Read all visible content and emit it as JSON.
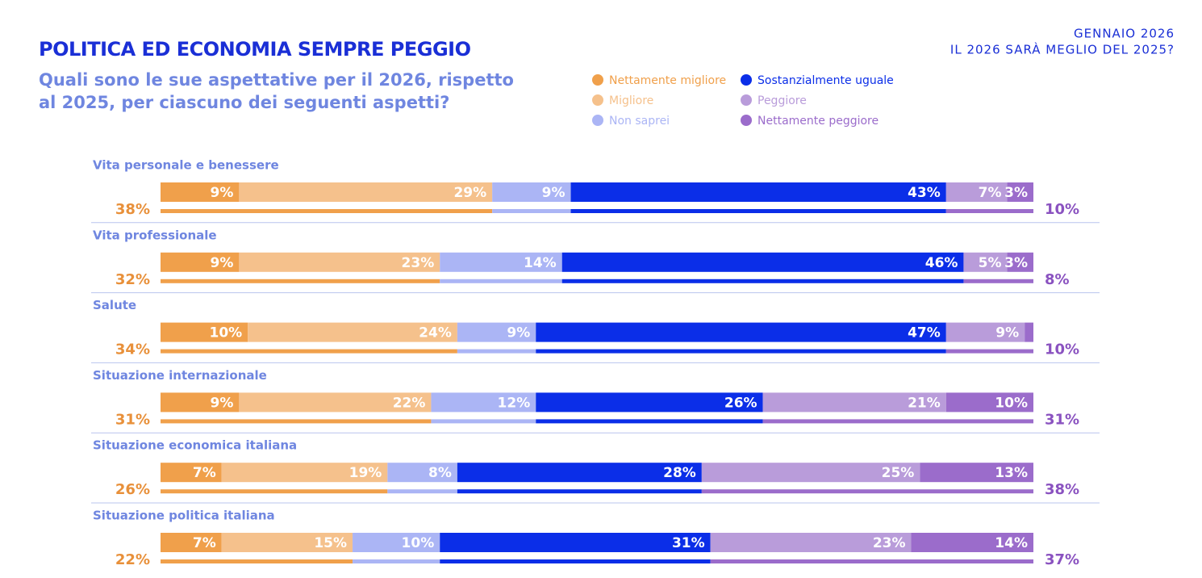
{
  "chart_data": {
    "type": "stacked-bar-horizontal",
    "title": "POLITICA ED ECONOMIA SEMPRE PEGGIO",
    "subtitle": "Quali sono le sue aspettative per il 2026, rispetto al 2025, per ciascuno dei seguenti aspetti?",
    "date": "GENNAIO 2026",
    "question": "IL 2026 SARÀ MEGLIO DEL 2025?",
    "categories": [
      "Vita personale e benessere",
      "Vita professionale",
      "Salute",
      "Situazione internazionale",
      "Situazione economica italiana",
      "Situazione politica italiana"
    ],
    "xlim": [
      0,
      100
    ],
    "series": [
      {
        "name": "Nettamente migliore",
        "color": "#f0a04b",
        "values": [
          9,
          9,
          10,
          9,
          7,
          7
        ],
        "value_labels": [
          "9%",
          "9%",
          "10%",
          "9%",
          "7%",
          "7%"
        ]
      },
      {
        "name": "Migliore",
        "color": "#f5c18c",
        "values": [
          29,
          23,
          24,
          22,
          19,
          15
        ],
        "value_labels": [
          "29%",
          "23%",
          "24%",
          "22%",
          "19%",
          "15%"
        ]
      },
      {
        "name": "Non saprei",
        "color": "#abb5f5",
        "values": [
          9,
          14,
          9,
          12,
          8,
          10
        ],
        "value_labels": [
          "9%",
          "14%",
          "9%",
          "12%",
          "8%",
          "10%"
        ]
      },
      {
        "name": "Sostanzialmente uguale",
        "color": "#0b2ee8",
        "values": [
          43,
          46,
          47,
          26,
          28,
          31
        ],
        "value_labels": [
          "43%",
          "46%",
          "47%",
          "26%",
          "28%",
          "31%"
        ]
      },
      {
        "name": "Peggiore",
        "color": "#b99cda",
        "values": [
          7,
          5,
          9,
          21,
          25,
          23
        ],
        "value_labels": [
          "7%",
          "5%",
          "9%",
          "21%",
          "25%",
          "23%"
        ]
      },
      {
        "name": "Nettamente peggiore",
        "color": "#9b6ccb",
        "values": [
          3,
          3,
          1,
          10,
          13,
          14
        ],
        "value_labels": [
          "3%",
          "3%",
          null,
          "10%",
          "13%",
          "14%"
        ]
      }
    ],
    "left_totals": [
      38,
      32,
      34,
      31,
      26,
      22
    ],
    "left_total_labels": [
      "38%",
      "32%",
      "34%",
      "31%",
      "26%",
      "22%"
    ],
    "right_totals": [
      10,
      8,
      10,
      31,
      38,
      37
    ],
    "right_total_labels": [
      "10%",
      "8%",
      "10%",
      "31%",
      "38%",
      "37%"
    ]
  }
}
